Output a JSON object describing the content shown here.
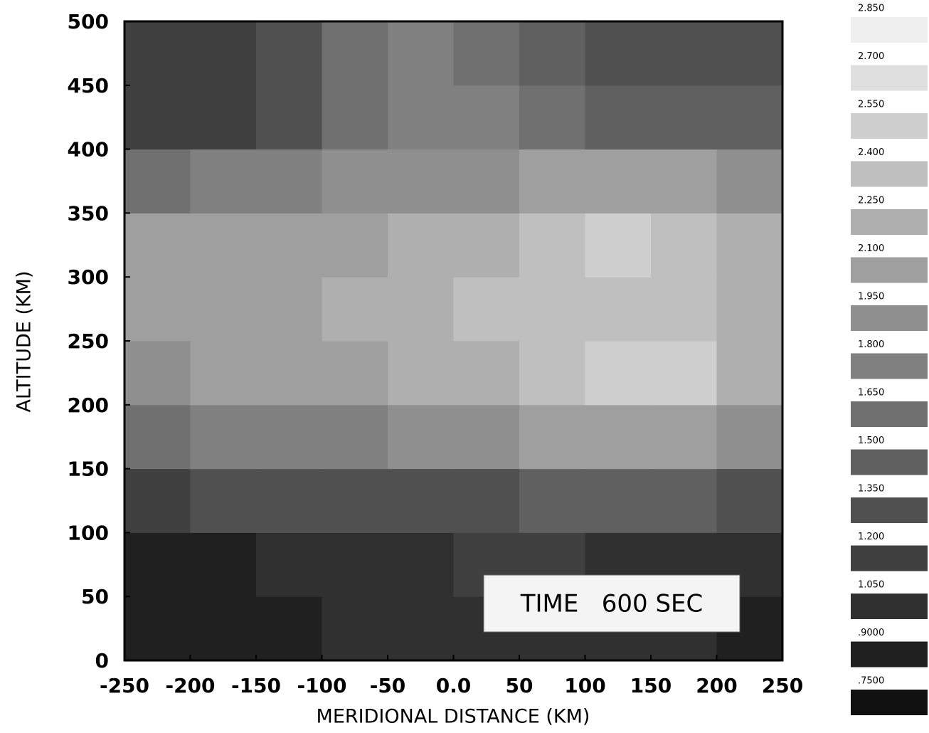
{
  "chart_data": {
    "type": "heatmap",
    "xlabel": "MERIDIONAL DISTANCE (KM)",
    "ylabel": "ALTITUDE (KM)",
    "annotation": "TIME   600 SEC",
    "x": [
      -225,
      -175,
      -125,
      -75,
      -25,
      25,
      75,
      125,
      175,
      225
    ],
    "y": [
      25,
      75,
      125,
      175,
      225,
      275,
      325,
      375,
      425,
      475
    ],
    "z": [
      [
        0.9,
        0.9,
        0.9,
        1.05,
        1.05,
        1.05,
        1.05,
        1.05,
        1.05,
        0.9
      ],
      [
        0.9,
        0.9,
        1.05,
        1.05,
        1.05,
        1.2,
        1.2,
        1.05,
        1.05,
        1.05
      ],
      [
        1.2,
        1.35,
        1.35,
        1.35,
        1.35,
        1.35,
        1.5,
        1.5,
        1.5,
        1.35
      ],
      [
        1.65,
        1.8,
        1.8,
        1.8,
        1.95,
        1.95,
        2.1,
        2.1,
        2.1,
        1.95
      ],
      [
        1.95,
        2.1,
        2.1,
        2.1,
        2.25,
        2.25,
        2.4,
        2.55,
        2.55,
        2.25
      ],
      [
        2.1,
        2.1,
        2.1,
        2.25,
        2.25,
        2.4,
        2.4,
        2.4,
        2.4,
        2.25
      ],
      [
        2.1,
        2.1,
        2.1,
        2.1,
        2.25,
        2.25,
        2.4,
        2.55,
        2.4,
        2.25
      ],
      [
        1.65,
        1.8,
        1.8,
        1.95,
        1.95,
        1.95,
        2.1,
        2.1,
        2.1,
        1.95
      ],
      [
        1.2,
        1.2,
        1.35,
        1.65,
        1.8,
        1.8,
        1.65,
        1.5,
        1.5,
        1.5
      ],
      [
        1.2,
        1.2,
        1.35,
        1.65,
        1.8,
        1.65,
        1.5,
        1.35,
        1.35,
        1.35
      ]
    ],
    "xlim": [
      -250,
      250
    ],
    "ylim": [
      0,
      500
    ],
    "xticks": [
      -250,
      -200,
      -150,
      -100,
      -50,
      {
        "value": 0,
        "label": "0.0"
      },
      50,
      100,
      150,
      200,
      250
    ],
    "yticks": [
      0,
      50,
      100,
      150,
      200,
      250,
      300,
      350,
      400,
      450,
      500
    ],
    "colorscale": [
      "#101010",
      "#efefef"
    ],
    "levels": [
      {
        "value": 2.85,
        "label": "2.850"
      },
      {
        "value": 2.7,
        "label": "2.700"
      },
      {
        "value": 2.55,
        "label": "2.550"
      },
      {
        "value": 2.4,
        "label": "2.400"
      },
      {
        "value": 2.25,
        "label": "2.250"
      },
      {
        "value": 2.1,
        "label": "2.100"
      },
      {
        "value": 1.95,
        "label": "1.950"
      },
      {
        "value": 1.8,
        "label": "1.800"
      },
      {
        "value": 1.65,
        "label": "1.650"
      },
      {
        "value": 1.5,
        "label": "1.500"
      },
      {
        "value": 1.35,
        "label": "1.350"
      },
      {
        "value": 1.2,
        "label": "1.200"
      },
      {
        "value": 1.05,
        "label": "1.050"
      },
      {
        "value": 0.9,
        "label": ".9000"
      },
      {
        "value": 0.75,
        "label": ".7500"
      }
    ]
  }
}
